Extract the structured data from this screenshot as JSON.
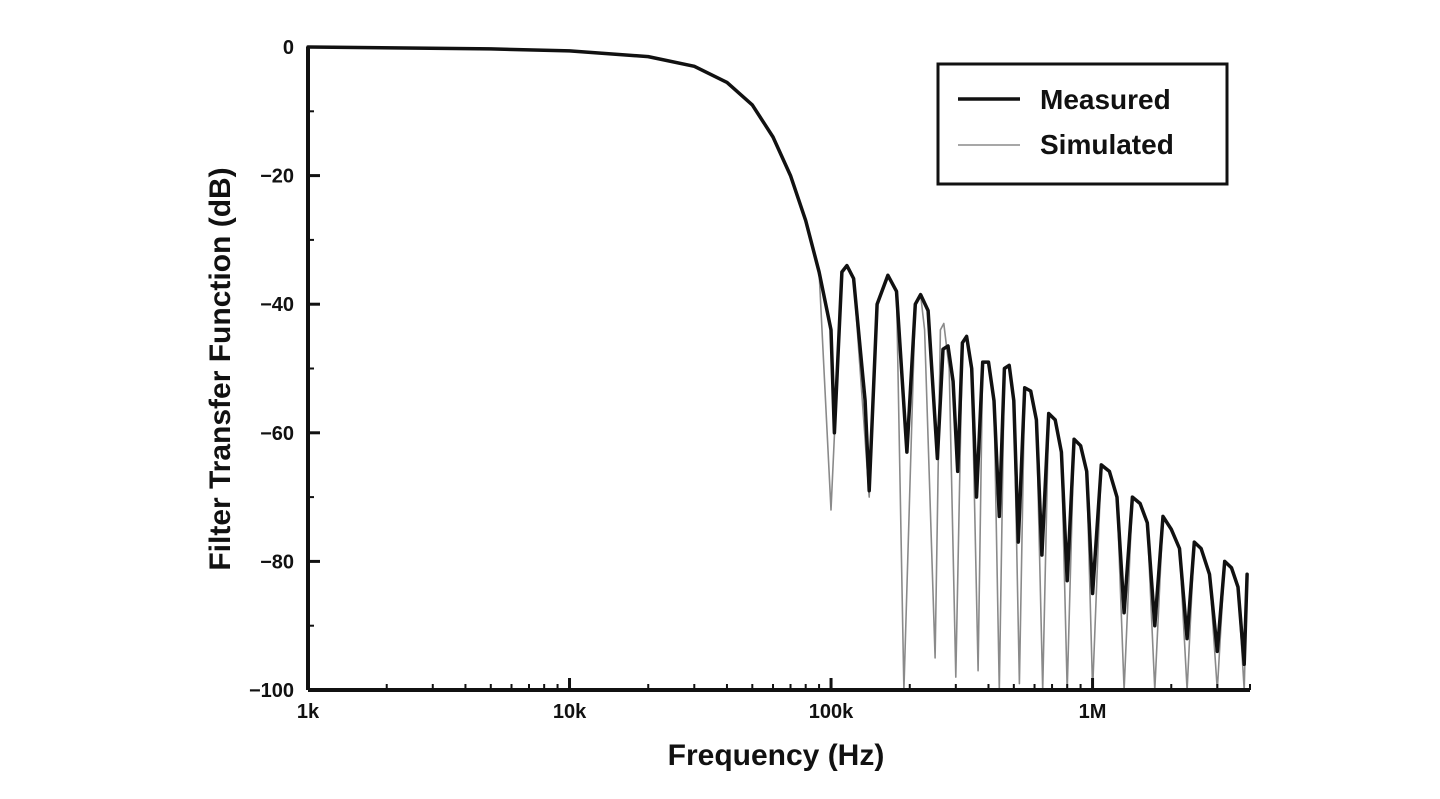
{
  "chart_data": {
    "type": "line",
    "xlabel": "Frequency (Hz)",
    "ylabel": "Filter Transfer Function (dB)",
    "x_scale": "log",
    "xlim": [
      1000,
      4000000
    ],
    "ylim": [
      -100,
      0
    ],
    "x_ticks": [
      {
        "value": 1000,
        "label": "1k"
      },
      {
        "value": 10000,
        "label": "10k"
      },
      {
        "value": 100000,
        "label": "100k"
      },
      {
        "value": 1000000,
        "label": "1M"
      }
    ],
    "y_ticks": [
      {
        "value": 0,
        "label": "0"
      },
      {
        "value": -20,
        "label": "−20"
      },
      {
        "value": -40,
        "label": "−40"
      },
      {
        "value": -60,
        "label": "−60"
      },
      {
        "value": -80,
        "label": "−80"
      },
      {
        "value": -100,
        "label": "−100"
      }
    ],
    "grid": false,
    "legend_position": "top-right",
    "series": [
      {
        "name": "Measured",
        "color": "#111111",
        "points": [
          [
            1000,
            0
          ],
          [
            5000,
            -0.3
          ],
          [
            10000,
            -0.6
          ],
          [
            20000,
            -1.5
          ],
          [
            30000,
            -3
          ],
          [
            40000,
            -5.5
          ],
          [
            50000,
            -9
          ],
          [
            60000,
            -14
          ],
          [
            70000,
            -20
          ],
          [
            80000,
            -27
          ],
          [
            90000,
            -35
          ],
          [
            100000,
            -44
          ],
          [
            103000,
            -60
          ],
          [
            110000,
            -35
          ],
          [
            115000,
            -34
          ],
          [
            122000,
            -36
          ],
          [
            135000,
            -55
          ],
          [
            140000,
            -69
          ],
          [
            150000,
            -40
          ],
          [
            165000,
            -35.5
          ],
          [
            178000,
            -38
          ],
          [
            195000,
            -63
          ],
          [
            210000,
            -40
          ],
          [
            220000,
            -38.5
          ],
          [
            235000,
            -41
          ],
          [
            255000,
            -64
          ],
          [
            268000,
            -47
          ],
          [
            280000,
            -46.5
          ],
          [
            293000,
            -52
          ],
          [
            305000,
            -66
          ],
          [
            318000,
            -46
          ],
          [
            330000,
            -45
          ],
          [
            345000,
            -50
          ],
          [
            360000,
            -70
          ],
          [
            380000,
            -49
          ],
          [
            400000,
            -49
          ],
          [
            420000,
            -55
          ],
          [
            440000,
            -73
          ],
          [
            460000,
            -50
          ],
          [
            480000,
            -49.5
          ],
          [
            500000,
            -55
          ],
          [
            520000,
            -77
          ],
          [
            550000,
            -53
          ],
          [
            580000,
            -53.5
          ],
          [
            610000,
            -58
          ],
          [
            640000,
            -79
          ],
          [
            680000,
            -57
          ],
          [
            720000,
            -58
          ],
          [
            760000,
            -63
          ],
          [
            800000,
            -83
          ],
          [
            850000,
            -61
          ],
          [
            900000,
            -62
          ],
          [
            950000,
            -66
          ],
          [
            1000000,
            -85
          ],
          [
            1080000,
            -65
          ],
          [
            1160000,
            -66
          ],
          [
            1240000,
            -70
          ],
          [
            1320000,
            -88
          ],
          [
            1420000,
            -70
          ],
          [
            1520000,
            -71
          ],
          [
            1620000,
            -74
          ],
          [
            1730000,
            -90
          ],
          [
            1860000,
            -73
          ],
          [
            2000000,
            -75
          ],
          [
            2150000,
            -78
          ],
          [
            2300000,
            -92
          ],
          [
            2450000,
            -77
          ],
          [
            2600000,
            -78
          ],
          [
            2800000,
            -82
          ],
          [
            3000000,
            -94
          ],
          [
            3200000,
            -80
          ],
          [
            3400000,
            -81
          ],
          [
            3600000,
            -84
          ],
          [
            3800000,
            -96
          ],
          [
            3900000,
            -82
          ]
        ]
      },
      {
        "name": "Simulated",
        "color": "#8a8a8a",
        "points": [
          [
            1000,
            0
          ],
          [
            5000,
            -0.3
          ],
          [
            10000,
            -0.6
          ],
          [
            20000,
            -1.5
          ],
          [
            30000,
            -3
          ],
          [
            40000,
            -5.5
          ],
          [
            50000,
            -9
          ],
          [
            60000,
            -14
          ],
          [
            70000,
            -20
          ],
          [
            80000,
            -27
          ],
          [
            90000,
            -35
          ],
          [
            100000,
            -72
          ],
          [
            110000,
            -35
          ],
          [
            115000,
            -34
          ],
          [
            122000,
            -36
          ],
          [
            140000,
            -70
          ],
          [
            150000,
            -40
          ],
          [
            165000,
            -35.5
          ],
          [
            178000,
            -38
          ],
          [
            190000,
            -100
          ],
          [
            210000,
            -40
          ],
          [
            220000,
            -38.5
          ],
          [
            228000,
            -44
          ],
          [
            250000,
            -95
          ],
          [
            262000,
            -44
          ],
          [
            270000,
            -43
          ],
          [
            283000,
            -50
          ],
          [
            300000,
            -98
          ],
          [
            318000,
            -46
          ],
          [
            330000,
            -45
          ],
          [
            345000,
            -50
          ],
          [
            365000,
            -97
          ],
          [
            380000,
            -49
          ],
          [
            400000,
            -49
          ],
          [
            420000,
            -55
          ],
          [
            440000,
            -100
          ],
          [
            460000,
            -50
          ],
          [
            480000,
            -49.5
          ],
          [
            500000,
            -55
          ],
          [
            525000,
            -99
          ],
          [
            550000,
            -53
          ],
          [
            580000,
            -53.5
          ],
          [
            610000,
            -58
          ],
          [
            645000,
            -100
          ],
          [
            680000,
            -57
          ],
          [
            720000,
            -58
          ],
          [
            760000,
            -63
          ],
          [
            800000,
            -100
          ],
          [
            850000,
            -61
          ],
          [
            900000,
            -62
          ],
          [
            950000,
            -66
          ],
          [
            1000000,
            -100
          ],
          [
            1080000,
            -65
          ],
          [
            1160000,
            -66
          ],
          [
            1240000,
            -70
          ],
          [
            1320000,
            -100
          ],
          [
            1420000,
            -70
          ],
          [
            1520000,
            -71
          ],
          [
            1620000,
            -74
          ],
          [
            1730000,
            -100
          ],
          [
            1860000,
            -73
          ],
          [
            2000000,
            -75
          ],
          [
            2150000,
            -78
          ],
          [
            2300000,
            -100
          ],
          [
            2450000,
            -77
          ],
          [
            2600000,
            -78
          ],
          [
            2800000,
            -82
          ],
          [
            3000000,
            -100
          ],
          [
            3200000,
            -80
          ],
          [
            3400000,
            -81
          ],
          [
            3600000,
            -84
          ],
          [
            3800000,
            -100
          ],
          [
            3900000,
            -82
          ]
        ]
      }
    ]
  }
}
